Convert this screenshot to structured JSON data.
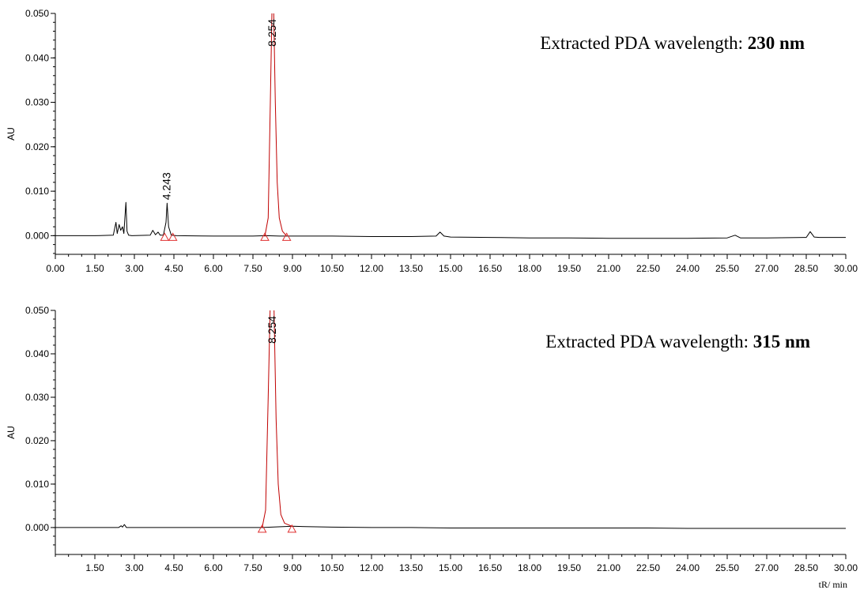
{
  "chart_data": [
    {
      "type": "line",
      "title": "",
      "ylabel": "AU",
      "xlabel": "",
      "xlim": [
        0,
        30
      ],
      "ylim": [
        -0.0042,
        0.05
      ],
      "x_ticks": [
        "0.00",
        "1.50",
        "3.00",
        "4.50",
        "6.00",
        "7.50",
        "9.00",
        "10.50",
        "12.00",
        "13.50",
        "15.00",
        "16.50",
        "18.00",
        "19.50",
        "21.00",
        "22.50",
        "24.00",
        "25.50",
        "27.00",
        "28.50",
        "30.00"
      ],
      "y_ticks": [
        "0.000",
        "0.010",
        "0.020",
        "0.030",
        "0.040",
        "0.050"
      ],
      "annotation": {
        "prefix": "Extracted PDA wavelength: ",
        "value": "230 nm"
      },
      "peaks": [
        {
          "label": "4.243",
          "rt": 4.243,
          "height": 0.0073
        },
        {
          "label": "8.254",
          "rt": 8.254,
          "height": 0.055
        }
      ],
      "peak_markers_min": [
        4.15,
        4.46,
        7.95,
        8.78
      ],
      "series": [
        {
          "color": "#000000",
          "x": [
            0,
            1.5,
            2.2,
            2.3,
            2.35,
            2.42,
            2.48,
            2.55,
            2.6,
            2.68,
            2.72,
            2.78,
            2.9,
            3.6,
            3.7,
            3.8,
            3.9,
            3.98,
            4.1,
            4.2,
            4.243,
            4.3,
            4.4,
            4.6,
            6.0,
            7.5,
            8.0,
            8.5,
            9.0,
            10.5,
            12.0,
            13.5,
            14.45,
            14.6,
            14.75,
            15.0,
            16.5,
            18.0,
            19.5,
            21.0,
            22.5,
            24.0,
            25.5,
            25.8,
            26.0,
            27.0,
            28.5,
            28.65,
            28.8,
            29.0,
            30.0
          ],
          "y": [
            0,
            0,
            0.0001,
            0.003,
            0.0005,
            0.0025,
            0.0012,
            0.002,
            0.0005,
            0.0075,
            0.001,
            0.0001,
            0,
            0.0001,
            0.0012,
            0.0002,
            0.0008,
            0.0001,
            0.0001,
            0.003,
            0.0073,
            0.002,
            0.0001,
            0,
            -0.0001,
            -0.0001,
            0,
            -0.0001,
            -0.0001,
            -0.0001,
            -0.0002,
            -0.0002,
            -0.0001,
            0.0008,
            -0.0001,
            -0.0003,
            -0.0004,
            -0.0005,
            -0.0005,
            -0.0006,
            -0.0006,
            -0.0006,
            -0.0005,
            0.0001,
            -0.0005,
            -0.0005,
            -0.0004,
            0.0009,
            -0.0003,
            -0.0004,
            -0.0004
          ]
        },
        {
          "color": "#c00000",
          "x": [
            7.95,
            8.08,
            8.16,
            8.22,
            8.254,
            8.29,
            8.35,
            8.42,
            8.5,
            8.62,
            8.78
          ],
          "y": [
            -0.0002,
            0.004,
            0.03,
            0.05,
            0.055,
            0.05,
            0.03,
            0.012,
            0.004,
            0.001,
            -0.0001
          ]
        }
      ]
    },
    {
      "type": "line",
      "title": "",
      "ylabel": "AU",
      "xlabel": "tR/ min",
      "xlim": [
        0,
        30
      ],
      "ylim": [
        -0.0062,
        0.05
      ],
      "x_ticks": [
        "1.50",
        "3.00",
        "4.50",
        "6.00",
        "7.50",
        "9.00",
        "10.50",
        "12.00",
        "13.50",
        "15.00",
        "16.50",
        "18.00",
        "19.50",
        "21.00",
        "22.50",
        "24.00",
        "25.50",
        "27.00",
        "28.50",
        "30.00"
      ],
      "y_ticks": [
        "0.000",
        "0.010",
        "0.020",
        "0.030",
        "0.040",
        "0.050"
      ],
      "annotation": {
        "prefix": "Extracted PDA wavelength: ",
        "value": "315 nm"
      },
      "peaks": [
        {
          "label": "8.254",
          "rt": 8.254,
          "height": 0.055
        }
      ],
      "peak_markers_min": [
        7.85,
        8.98
      ],
      "series": [
        {
          "color": "#000000",
          "x": [
            0,
            1.5,
            2.4,
            2.5,
            2.55,
            2.62,
            2.7,
            3.0,
            4.5,
            6.0,
            7.5,
            7.85,
            9.0,
            9.5,
            10.5,
            12.0,
            13.5,
            15.0,
            16.5,
            18.0,
            19.5,
            21.0,
            22.5,
            24.0,
            25.5,
            27.0,
            28.5,
            30.0
          ],
          "y": [
            0,
            0,
            0,
            0.0004,
            0.0001,
            0.0007,
            0,
            0,
            0,
            0,
            0,
            0,
            0.0003,
            0.0002,
            0.0001,
            0,
            0,
            -0.0001,
            -0.0001,
            -0.0001,
            -0.0001,
            -0.0001,
            -0.0001,
            -0.0002,
            -0.0002,
            -0.0002,
            -0.0002,
            -0.0002
          ]
        },
        {
          "color": "#c00000",
          "x": [
            7.85,
            7.98,
            8.08,
            8.15,
            8.254,
            8.3,
            8.38,
            8.46,
            8.56,
            8.7,
            8.98
          ],
          "y": [
            0,
            0.004,
            0.03,
            0.05,
            0.055,
            0.05,
            0.025,
            0.01,
            0.003,
            0.001,
            0.0003
          ]
        }
      ]
    }
  ]
}
